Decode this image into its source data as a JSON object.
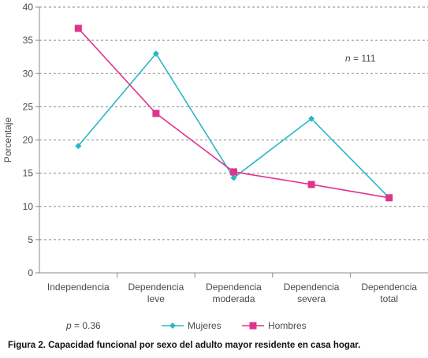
{
  "chart_data": {
    "type": "line",
    "ylabel": "Porcentaje",
    "xlabel": "",
    "ylim": [
      0,
      40
    ],
    "yticks": [
      0,
      5,
      10,
      15,
      20,
      25,
      30,
      35,
      40
    ],
    "grid": "horizontal-dashed",
    "categories": [
      [
        "Independencia"
      ],
      [
        "Dependencia",
        "leve"
      ],
      [
        "Dependencia",
        "moderada"
      ],
      [
        "Dependencia",
        "severa"
      ],
      [
        "Dependencia",
        "total"
      ]
    ],
    "series": [
      {
        "name": "Mujeres",
        "color": "#2ab7c4",
        "marker": "diamond",
        "values": [
          19.1,
          33.0,
          14.3,
          23.2,
          11.3
        ]
      },
      {
        "name": "Hombres",
        "color": "#e0348c",
        "marker": "square",
        "values": [
          36.8,
          24.0,
          15.2,
          13.3,
          11.3
        ]
      }
    ],
    "annotations": {
      "n_label": "n = 111",
      "p_label": "p = 0.36"
    },
    "legend_position": "bottom"
  },
  "caption": "Figura 2. Capacidad funcional por sexo del adulto mayor residente en casa hogar."
}
